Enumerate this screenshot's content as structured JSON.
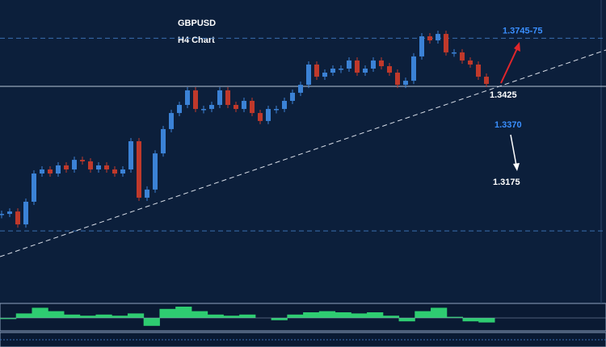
{
  "chart_data": {
    "type": "candlestick",
    "title": "GBPUSD",
    "subtitle": "H4 Chart",
    "values": [
      1.2575,
      1.2591,
      1.2505,
      1.2656,
      1.2844,
      1.2871,
      1.2844,
      1.2898,
      1.2871,
      1.2935,
      1.2925,
      1.2871,
      1.2898,
      1.2871,
      1.2844,
      1.2871,
      1.3059,
      1.2683,
      1.2737,
      1.2978,
      1.314,
      1.3247,
      1.3301,
      1.3398,
      1.3274,
      1.3274,
      1.3301,
      1.3398,
      1.3301,
      1.3274,
      1.3328,
      1.3247,
      1.3194,
      1.3274,
      1.3274,
      1.3328,
      1.3382,
      1.3435,
      1.357,
      1.3489,
      1.3516,
      1.3543,
      1.3543,
      1.3597,
      1.3516,
      1.3543,
      1.3597,
      1.3559,
      1.3516,
      1.3435,
      1.3462,
      1.3624,
      1.3758,
      1.3731,
      1.3774,
      1.3651,
      1.3651,
      1.3597,
      1.357,
      1.3489,
      1.3441
    ],
    "up_color": "#3b82d6",
    "down_color": "#c0392b",
    "ylim": [
      1.2,
      1.4
    ],
    "levels": [
      {
        "value": 1.3745,
        "label": "1.3745-75",
        "color": "#3a8fff",
        "style": "dashed"
      },
      {
        "value": 1.3425,
        "label": "1.3425",
        "color": "#ffffff",
        "style": "solid"
      }
    ],
    "support_level": 1.2462,
    "trendline": [
      1.229,
      1.3667
    ],
    "annotations": [
      {
        "label": "1.3370",
        "color": "#3a8fff"
      },
      {
        "label": "1.3175",
        "color": "#ffffff"
      }
    ],
    "oscillator": {
      "values": [
        -0.1,
        0.4,
        0.9,
        0.6,
        0.3,
        0.2,
        0.3,
        0.2,
        0.4,
        -0.7,
        0.8,
        1,
        0.6,
        0.3,
        0.2,
        0.3,
        0,
        -0.2,
        0.3,
        0.5,
        0.6,
        0.5,
        0.4,
        0.5,
        0.2,
        -0.3,
        0.6,
        0.9,
        0.1,
        -0.3,
        -0.4
      ],
      "ylim": [
        -1,
        1
      ],
      "color": "#2ecc71"
    }
  }
}
